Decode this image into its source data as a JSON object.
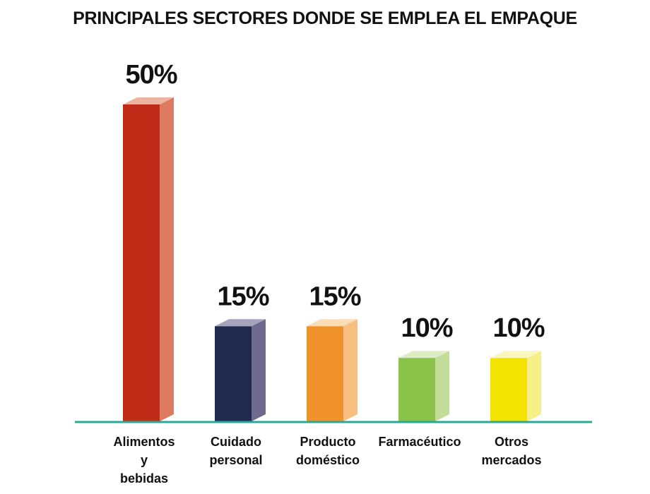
{
  "chart_data": {
    "type": "bar",
    "title": "PRINCIPALES SECTORES DONDE SE EMPLEA EL EMPAQUE",
    "categories": [
      [
        "Alimentos",
        "y",
        "bebidas"
      ],
      [
        "Cuidado",
        "personal"
      ],
      [
        "Producto",
        "doméstico"
      ],
      [
        "Farmacéutico"
      ],
      [
        "Otros",
        "mercados"
      ]
    ],
    "values": [
      50,
      15,
      15,
      10,
      10
    ],
    "value_labels": [
      "50%",
      "15%",
      "15%",
      "10%",
      "10%"
    ],
    "ylim": [
      0,
      50
    ],
    "grid": false,
    "colors": {
      "front": [
        "#bf2b17",
        "#1f2a4e",
        "#f0922a",
        "#8bc34a",
        "#f2e400"
      ],
      "side": [
        "#de7a5f",
        "#6e6b8f",
        "#f7c080",
        "#c2dd98",
        "#f7f08a"
      ],
      "top": [
        "#ecb3a1",
        "#a6a3bd",
        "#fbdcb4",
        "#dcedc4",
        "#fbf6bd"
      ],
      "baseline": "#2aa89a"
    }
  }
}
